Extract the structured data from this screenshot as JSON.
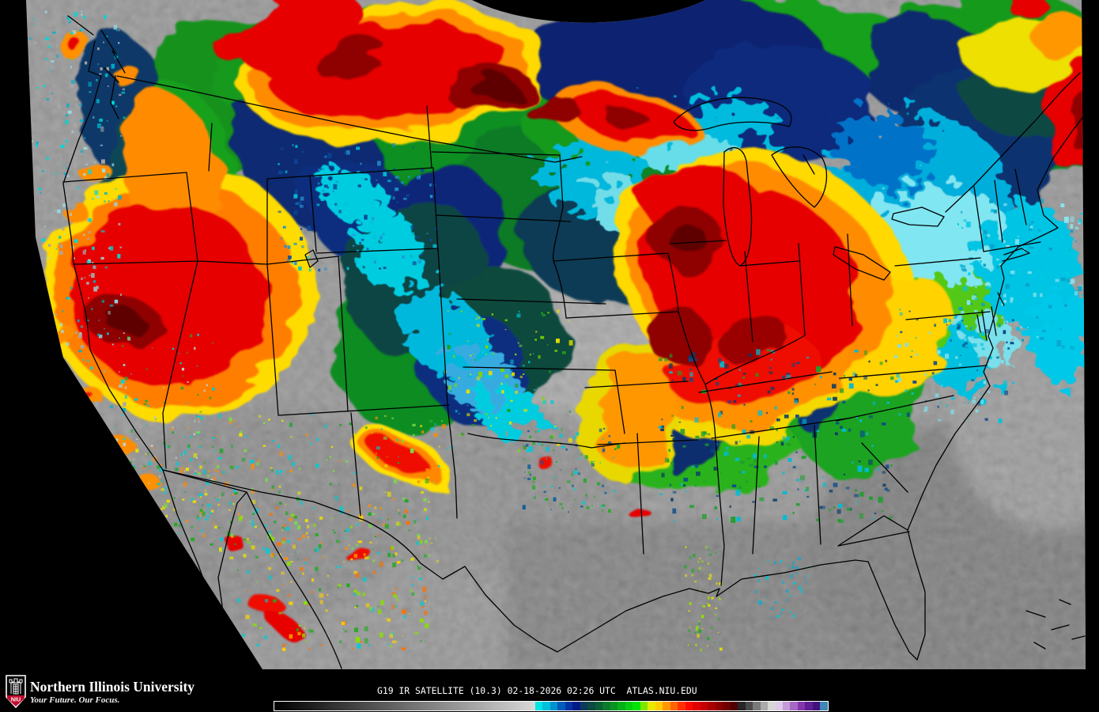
{
  "footer": {
    "logo_acronym": "NIU",
    "institution": "Northern Illinois University",
    "tagline": "Your Future. Our Focus.",
    "caption": "G19 IR SATELLITE (10.3) 02-18-2026 02:26 UTC  ATLAS.NIU.EDU"
  },
  "colorbar": {
    "border_color": "#ffffff",
    "left_gradient": [
      "#000000",
      "#d8d8d8"
    ],
    "segments": [
      "#00e4e4",
      "#00c0dc",
      "#0092cc",
      "#005cbc",
      "#0034a4",
      "#001c86",
      "#0e3a5a",
      "#0c4a42",
      "#0a6034",
      "#0c7a2a",
      "#089420",
      "#06b018",
      "#04cc10",
      "#02e408",
      "#7ce800",
      "#e8e800",
      "#ffcc00",
      "#ff9800",
      "#ff6400",
      "#ff3000",
      "#fc0800",
      "#e00000",
      "#c40000",
      "#a80000",
      "#8c0000",
      "#700000",
      "#500000",
      "#262626",
      "#4a4a4a",
      "#7a7a7a",
      "#aaaaaa",
      "#d6d6d6",
      "#dcc8ea",
      "#c49ad8",
      "#a668c4",
      "#8436ac",
      "#601e94",
      "#40127c",
      "#3f85b5"
    ]
  },
  "map": {
    "background_color": "#000000",
    "clear_land_color": "#999999",
    "boundary_color": "#000000",
    "enhancement_palette": {
      "cold_cyan": "#00d0e0",
      "light_blue": "#35abe0",
      "blue": "#0050c0",
      "navy": "#001c86",
      "dark_teal": "#0c4a42",
      "green": "#089420",
      "yellow": "#e8e800",
      "orange": "#ff9800",
      "red": "#e00000",
      "dark_red": "#8c0000",
      "maroon": "#500000"
    }
  }
}
